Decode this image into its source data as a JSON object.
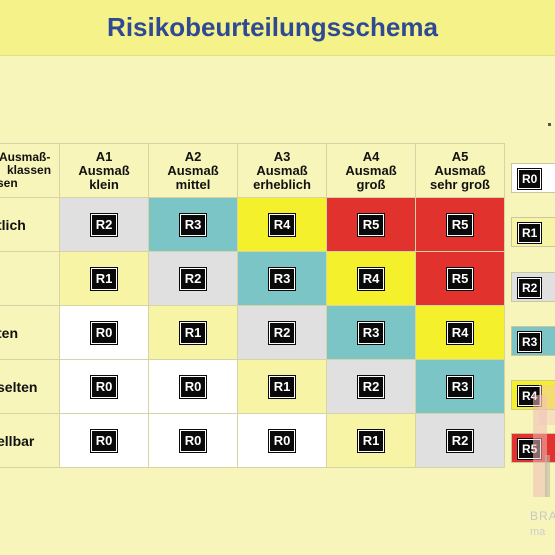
{
  "title": "Risikobeurteilungsschema",
  "corner_lines": [
    "Ausmaß-",
    "klassen",
    "sen"
  ],
  "columns": [
    {
      "code": "A1",
      "line1": "Ausmaß",
      "line2": "klein"
    },
    {
      "code": "A2",
      "line1": "Ausmaß",
      "line2": "mittel"
    },
    {
      "code": "A3",
      "line1": "Ausmaß",
      "line2": "erheblich"
    },
    {
      "code": "A4",
      "line1": "Ausmaß",
      "line2": "groß"
    },
    {
      "code": "A5",
      "line1": "Ausmaß",
      "line2": "sehr groß"
    }
  ],
  "rows": [
    {
      "label": "tlich",
      "cells": [
        "R2",
        "R3",
        "R4",
        "R5",
        "R5"
      ]
    },
    {
      "label": "",
      "cells": [
        "R1",
        "R2",
        "R3",
        "R4",
        "R5"
      ]
    },
    {
      "label": "ten",
      "cells": [
        "R0",
        "R1",
        "R2",
        "R3",
        "R4"
      ]
    },
    {
      "label": "selten",
      "cells": [
        "R0",
        "R0",
        "R1",
        "R2",
        "R3"
      ]
    },
    {
      "label": "ellbar",
      "cells": [
        "R0",
        "R0",
        "R0",
        "R1",
        "R2"
      ]
    }
  ],
  "risk_colors": {
    "R0": "#ffffff",
    "R1": "#f7f4a6",
    "R2": "#e0e0e0",
    "R3": "#7cc5c6",
    "R4": "#f4f02c",
    "R5": "#e2322d"
  },
  "legend": [
    "R0",
    "R1",
    "R2",
    "R3",
    "R4",
    "R5"
  ],
  "watermark": {
    "text": "BRA",
    "sub": "ma"
  }
}
